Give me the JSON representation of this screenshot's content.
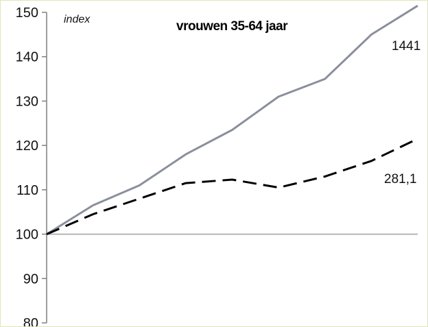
{
  "chart_data": {
    "type": "line",
    "title": "vrouwen 35-64 jaar",
    "ylabel": "index",
    "xlabel": "",
    "ylim": [
      80,
      150
    ],
    "yticks": [
      80,
      90,
      100,
      110,
      120,
      130,
      140,
      150
    ],
    "x": [
      0,
      1,
      2,
      3,
      4,
      5,
      6,
      7,
      8
    ],
    "grid": false,
    "reference_line": 100,
    "series": [
      {
        "name": "1441",
        "style": "solid",
        "color": "#8a8f9c",
        "values": [
          100,
          106.5,
          111,
          118,
          123.5,
          131,
          135,
          145,
          151.5
        ]
      },
      {
        "name": "281,1",
        "style": "dashed",
        "color": "#000000",
        "values": [
          100,
          104.5,
          108,
          111.5,
          112.3,
          110.5,
          113,
          116.5,
          121.5
        ]
      }
    ]
  }
}
